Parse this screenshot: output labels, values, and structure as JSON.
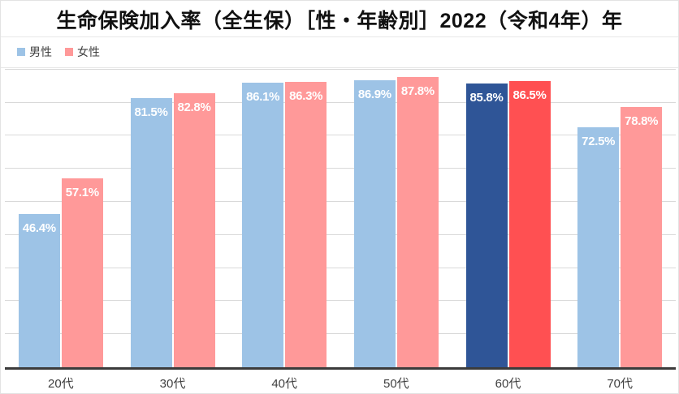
{
  "title": "生命保険加入率（全生保）［性・年齢別］2022（令和4年）年",
  "legend": {
    "position": "top-left",
    "items": [
      {
        "label": "男性",
        "color": "#9DC3E6"
      },
      {
        "label": "女性",
        "color": "#FF9999"
      }
    ]
  },
  "chart_data": {
    "type": "bar",
    "title": "生命保険加入率（全生保）［性・年齢別］2022（令和4年）年",
    "categories": [
      "20代",
      "30代",
      "40代",
      "50代",
      "60代",
      "70代"
    ],
    "series": [
      {
        "name": "男性",
        "color": "#9DC3E6",
        "highlight_color": "#2F5597",
        "values": [
          46.4,
          81.5,
          86.1,
          86.9,
          85.8,
          72.5
        ]
      },
      {
        "name": "女性",
        "color": "#FF9999",
        "highlight_color": "#FF5052",
        "values": [
          57.1,
          82.8,
          86.3,
          87.8,
          86.5,
          78.8
        ]
      }
    ],
    "highlight_category_index": 4,
    "value_label_suffix": "%",
    "value_labels_position": "inside-end",
    "xlabel": "",
    "ylabel": "",
    "ylim": [
      0,
      90.7
    ],
    "gridline_step": 10,
    "grid": true,
    "y_axis_labels_visible": false,
    "colors": {
      "gridline": "#d9d9d9",
      "axis_line": "#3b3b3b",
      "category_label": "#404040",
      "value_label": "#ffffff"
    }
  }
}
